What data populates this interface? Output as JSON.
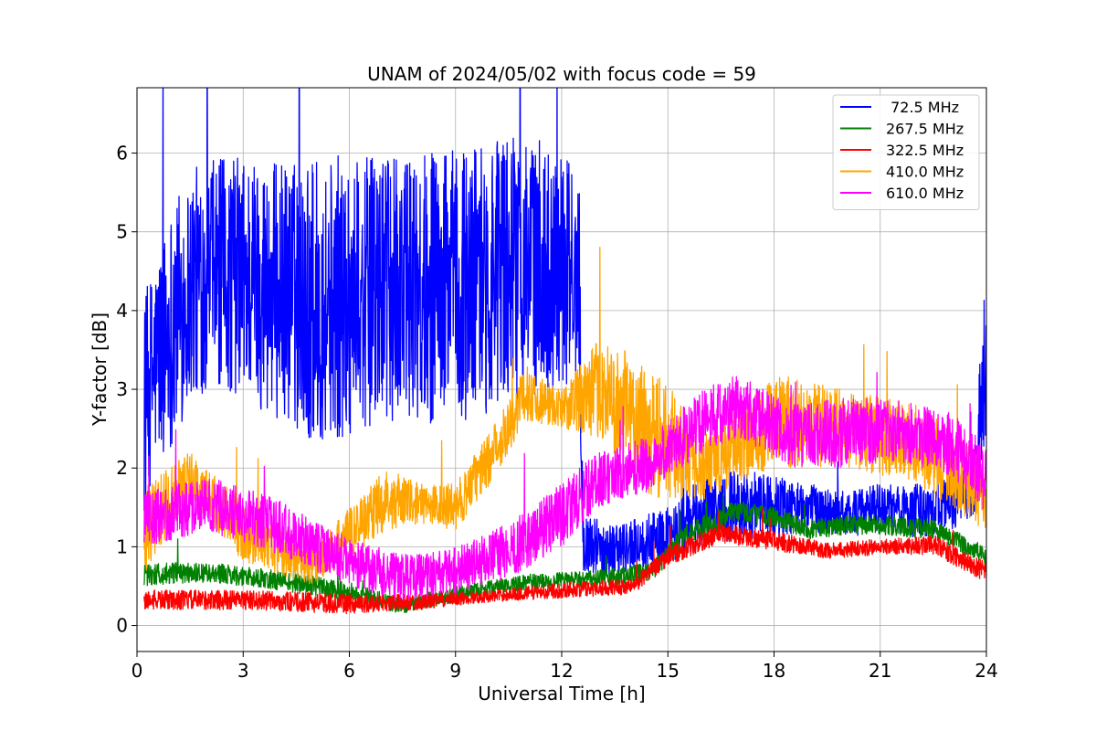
{
  "chart_data": {
    "type": "line",
    "title": "UNAM of 2024/05/02 with focus code = 59",
    "xlabel": "Universal Time [h]",
    "ylabel": "Y-factor [dB]",
    "xlim": [
      0,
      24
    ],
    "ylim": [
      -0.33,
      6.83
    ],
    "xticks": [
      0,
      3,
      6,
      9,
      12,
      15,
      18,
      21,
      24
    ],
    "yticks": [
      0,
      1,
      2,
      3,
      4,
      5,
      6
    ],
    "grid": true,
    "legend_position": "top-right",
    "series": [
      {
        "name": " 72.5 MHz",
        "color": "#0000ff",
        "envelope": [
          {
            "x": 0.2,
            "lo": 1.4,
            "hi": 4.2
          },
          {
            "x": 0.5,
            "lo": 2.0,
            "hi": 4.6
          },
          {
            "x": 1.0,
            "lo": 2.3,
            "hi": 5.4
          },
          {
            "x": 1.5,
            "lo": 2.8,
            "hi": 5.8
          },
          {
            "x": 2.0,
            "lo": 3.0,
            "hi": 5.9
          },
          {
            "x": 3.0,
            "lo": 2.9,
            "hi": 6.0
          },
          {
            "x": 4.0,
            "lo": 2.6,
            "hi": 5.9
          },
          {
            "x": 5.0,
            "lo": 2.3,
            "hi": 5.9
          },
          {
            "x": 6.0,
            "lo": 2.4,
            "hi": 6.0
          },
          {
            "x": 7.0,
            "lo": 2.6,
            "hi": 5.9
          },
          {
            "x": 8.0,
            "lo": 2.6,
            "hi": 6.0
          },
          {
            "x": 9.0,
            "lo": 2.5,
            "hi": 6.1
          },
          {
            "x": 10.0,
            "lo": 2.7,
            "hi": 6.2
          },
          {
            "x": 11.0,
            "lo": 2.9,
            "hi": 6.2
          },
          {
            "x": 12.0,
            "lo": 3.0,
            "hi": 6.1
          },
          {
            "x": 12.5,
            "lo": 3.2,
            "hi": 5.6
          },
          {
            "x": 12.6,
            "lo": 0.7,
            "hi": 1.4
          },
          {
            "x": 13.5,
            "lo": 0.6,
            "hi": 1.3
          },
          {
            "x": 15.0,
            "lo": 0.8,
            "hi": 1.5
          },
          {
            "x": 16.0,
            "lo": 1.0,
            "hi": 1.9
          },
          {
            "x": 17.0,
            "lo": 1.1,
            "hi": 2.0
          },
          {
            "x": 18.0,
            "lo": 1.1,
            "hi": 1.9
          },
          {
            "x": 19.0,
            "lo": 1.2,
            "hi": 1.8
          },
          {
            "x": 20.0,
            "lo": 1.1,
            "hi": 1.7
          },
          {
            "x": 21.0,
            "lo": 1.2,
            "hi": 1.8
          },
          {
            "x": 22.0,
            "lo": 1.1,
            "hi": 1.8
          },
          {
            "x": 23.0,
            "lo": 1.2,
            "hi": 1.9
          },
          {
            "x": 23.7,
            "lo": 1.4,
            "hi": 2.2
          },
          {
            "x": 23.9,
            "lo": 2.0,
            "hi": 4.3
          },
          {
            "x": 24.0,
            "lo": 2.5,
            "hi": 4.3
          }
        ]
      },
      {
        "name": "267.5 MHz",
        "color": "#008000",
        "envelope": [
          {
            "x": 0.2,
            "lo": 0.5,
            "hi": 0.8
          },
          {
            "x": 2.0,
            "lo": 0.55,
            "hi": 0.8
          },
          {
            "x": 4.0,
            "lo": 0.45,
            "hi": 0.7
          },
          {
            "x": 6.0,
            "lo": 0.3,
            "hi": 0.55
          },
          {
            "x": 7.5,
            "lo": 0.15,
            "hi": 0.35
          },
          {
            "x": 9.0,
            "lo": 0.3,
            "hi": 0.5
          },
          {
            "x": 11.0,
            "lo": 0.45,
            "hi": 0.65
          },
          {
            "x": 13.0,
            "lo": 0.5,
            "hi": 0.7
          },
          {
            "x": 14.5,
            "lo": 0.55,
            "hi": 0.8
          },
          {
            "x": 15.5,
            "lo": 1.0,
            "hi": 1.3
          },
          {
            "x": 17.0,
            "lo": 1.3,
            "hi": 1.6
          },
          {
            "x": 18.0,
            "lo": 1.25,
            "hi": 1.5
          },
          {
            "x": 19.0,
            "lo": 1.1,
            "hi": 1.35
          },
          {
            "x": 20.0,
            "lo": 1.15,
            "hi": 1.4
          },
          {
            "x": 21.0,
            "lo": 1.15,
            "hi": 1.4
          },
          {
            "x": 22.5,
            "lo": 1.1,
            "hi": 1.35
          },
          {
            "x": 24.0,
            "lo": 0.75,
            "hi": 1.0
          }
        ]
      },
      {
        "name": "322.5 MHz",
        "color": "#ff0000",
        "envelope": [
          {
            "x": 0.2,
            "lo": 0.2,
            "hi": 0.45
          },
          {
            "x": 3.0,
            "lo": 0.2,
            "hi": 0.45
          },
          {
            "x": 6.0,
            "lo": 0.15,
            "hi": 0.4
          },
          {
            "x": 8.0,
            "lo": 0.2,
            "hi": 0.4
          },
          {
            "x": 10.0,
            "lo": 0.3,
            "hi": 0.45
          },
          {
            "x": 12.0,
            "lo": 0.35,
            "hi": 0.55
          },
          {
            "x": 14.0,
            "lo": 0.4,
            "hi": 0.6
          },
          {
            "x": 15.0,
            "lo": 0.75,
            "hi": 1.0
          },
          {
            "x": 16.5,
            "lo": 1.05,
            "hi": 1.3
          },
          {
            "x": 18.0,
            "lo": 0.95,
            "hi": 1.2
          },
          {
            "x": 19.5,
            "lo": 0.85,
            "hi": 1.05
          },
          {
            "x": 21.0,
            "lo": 0.9,
            "hi": 1.1
          },
          {
            "x": 22.5,
            "lo": 0.9,
            "hi": 1.15
          },
          {
            "x": 24.0,
            "lo": 0.55,
            "hi": 0.8
          }
        ]
      },
      {
        "name": "410.0 MHz",
        "color": "#ffa500",
        "envelope": [
          {
            "x": 0.2,
            "lo": 0.6,
            "hi": 1.8
          },
          {
            "x": 1.5,
            "lo": 1.6,
            "hi": 2.2
          },
          {
            "x": 3.0,
            "lo": 0.8,
            "hi": 1.6
          },
          {
            "x": 5.0,
            "lo": 0.5,
            "hi": 1.0
          },
          {
            "x": 7.0,
            "lo": 1.2,
            "hi": 2.0
          },
          {
            "x": 8.0,
            "lo": 1.3,
            "hi": 1.8
          },
          {
            "x": 9.0,
            "lo": 1.2,
            "hi": 1.8
          },
          {
            "x": 10.0,
            "lo": 1.8,
            "hi": 2.5
          },
          {
            "x": 11.0,
            "lo": 2.6,
            "hi": 3.3
          },
          {
            "x": 12.0,
            "lo": 2.5,
            "hi": 3.0
          },
          {
            "x": 13.0,
            "lo": 2.4,
            "hi": 3.6
          },
          {
            "x": 14.5,
            "lo": 1.6,
            "hi": 3.4
          },
          {
            "x": 16.0,
            "lo": 1.6,
            "hi": 2.4
          },
          {
            "x": 18.0,
            "lo": 2.0,
            "hi": 3.2
          },
          {
            "x": 20.0,
            "lo": 2.0,
            "hi": 3.0
          },
          {
            "x": 22.0,
            "lo": 1.8,
            "hi": 2.8
          },
          {
            "x": 24.0,
            "lo": 1.2,
            "hi": 2.2
          }
        ]
      },
      {
        "name": "610.0 MHz",
        "color": "#ff00ff",
        "envelope": [
          {
            "x": 0.2,
            "lo": 1.0,
            "hi": 1.7
          },
          {
            "x": 2.0,
            "lo": 1.2,
            "hi": 1.9
          },
          {
            "x": 4.0,
            "lo": 0.9,
            "hi": 1.6
          },
          {
            "x": 6.0,
            "lo": 0.5,
            "hi": 1.1
          },
          {
            "x": 7.5,
            "lo": 0.3,
            "hi": 0.9
          },
          {
            "x": 9.0,
            "lo": 0.4,
            "hi": 1.0
          },
          {
            "x": 10.5,
            "lo": 0.6,
            "hi": 1.3
          },
          {
            "x": 12.0,
            "lo": 1.0,
            "hi": 1.8
          },
          {
            "x": 13.0,
            "lo": 1.5,
            "hi": 2.2
          },
          {
            "x": 14.5,
            "lo": 1.7,
            "hi": 2.4
          },
          {
            "x": 16.0,
            "lo": 2.2,
            "hi": 3.0
          },
          {
            "x": 17.0,
            "lo": 2.4,
            "hi": 3.2
          },
          {
            "x": 18.5,
            "lo": 2.0,
            "hi": 2.8
          },
          {
            "x": 20.0,
            "lo": 2.0,
            "hi": 2.9
          },
          {
            "x": 21.5,
            "lo": 2.1,
            "hi": 2.9
          },
          {
            "x": 23.0,
            "lo": 1.9,
            "hi": 2.7
          },
          {
            "x": 24.0,
            "lo": 1.4,
            "hi": 2.3
          }
        ]
      }
    ]
  }
}
